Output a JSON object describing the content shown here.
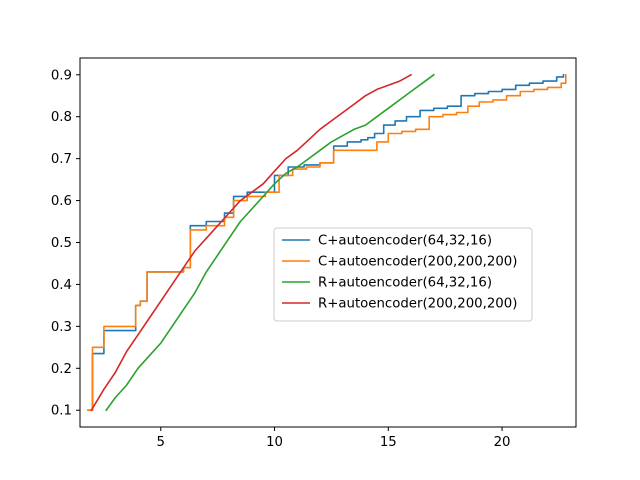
{
  "chart_data": {
    "type": "line",
    "title": "",
    "xlabel": "",
    "ylabel": "",
    "xlim": [
      1.45,
      23.25
    ],
    "ylim": [
      0.06,
      0.94
    ],
    "xticks": [
      5,
      10,
      15,
      20
    ],
    "yticks": [
      0.1,
      0.2,
      0.3,
      0.4,
      0.5,
      0.6,
      0.7,
      0.8,
      0.9
    ],
    "xtick_labels": [
      "5",
      "10",
      "15",
      "20"
    ],
    "ytick_labels": [
      "0.1",
      "0.2",
      "0.3",
      "0.4",
      "0.5",
      "0.6",
      "0.7",
      "0.8",
      "0.9"
    ],
    "grid": false,
    "legend_position": "center-right",
    "series": [
      {
        "name": "C+autoencoder(64,32,16)",
        "color": "#1f77b4",
        "step": true,
        "x": [
          1.8,
          2.0,
          2.5,
          3.9,
          4.1,
          4.4,
          6.0,
          6.3,
          6.6,
          7.0,
          7.4,
          7.8,
          8.2,
          8.8,
          9.6,
          10.0,
          10.6,
          11.3,
          12.0,
          12.6,
          13.2,
          13.8,
          14.1,
          14.4,
          14.8,
          15.3,
          15.8,
          16.4,
          17.0,
          17.6,
          18.2,
          18.8,
          19.4,
          20.0,
          20.6,
          21.2,
          21.8,
          22.4,
          22.7
        ],
        "y": [
          0.1,
          0.235,
          0.29,
          0.35,
          0.36,
          0.43,
          0.44,
          0.54,
          0.54,
          0.55,
          0.55,
          0.57,
          0.61,
          0.62,
          0.62,
          0.66,
          0.68,
          0.685,
          0.69,
          0.73,
          0.74,
          0.745,
          0.75,
          0.76,
          0.78,
          0.79,
          0.8,
          0.815,
          0.82,
          0.825,
          0.85,
          0.855,
          0.86,
          0.865,
          0.875,
          0.88,
          0.885,
          0.895,
          0.9
        ]
      },
      {
        "name": "C+autoencoder(200,200,200)",
        "color": "#ff7f0e",
        "step": true,
        "x": [
          1.8,
          2.0,
          2.5,
          3.9,
          4.1,
          4.4,
          6.0,
          6.3,
          6.6,
          7.0,
          7.4,
          7.8,
          8.2,
          8.8,
          9.6,
          10.2,
          10.8,
          11.4,
          12.0,
          12.6,
          13.4,
          14.0,
          14.5,
          15.0,
          15.6,
          16.2,
          16.8,
          17.4,
          18.0,
          18.5,
          19.0,
          19.6,
          20.2,
          20.8,
          21.4,
          22.0,
          22.6,
          22.8
        ],
        "y": [
          0.1,
          0.25,
          0.3,
          0.35,
          0.36,
          0.43,
          0.44,
          0.53,
          0.53,
          0.54,
          0.54,
          0.56,
          0.6,
          0.61,
          0.62,
          0.66,
          0.675,
          0.68,
          0.69,
          0.72,
          0.72,
          0.72,
          0.74,
          0.76,
          0.765,
          0.77,
          0.8,
          0.805,
          0.81,
          0.825,
          0.835,
          0.84,
          0.85,
          0.86,
          0.865,
          0.87,
          0.88,
          0.9
        ]
      },
      {
        "name": "R+autoencoder(64,32,16)",
        "color": "#2ca02c",
        "step": false,
        "x": [
          2.6,
          3.0,
          3.5,
          4.0,
          4.5,
          5.0,
          5.5,
          6.0,
          6.5,
          7.0,
          7.5,
          8.0,
          8.5,
          9.0,
          9.5,
          10.0,
          10.5,
          11.0,
          11.5,
          12.0,
          12.5,
          13.0,
          13.5,
          14.0,
          14.5,
          15.0,
          15.5,
          16.0,
          16.5,
          17.0
        ],
        "y": [
          0.1,
          0.13,
          0.16,
          0.2,
          0.23,
          0.26,
          0.3,
          0.34,
          0.38,
          0.43,
          0.47,
          0.51,
          0.55,
          0.58,
          0.61,
          0.64,
          0.665,
          0.68,
          0.7,
          0.72,
          0.74,
          0.755,
          0.77,
          0.78,
          0.8,
          0.82,
          0.84,
          0.86,
          0.88,
          0.9
        ]
      },
      {
        "name": "R+autoencoder(200,200,200)",
        "color": "#d62728",
        "step": false,
        "x": [
          1.95,
          2.5,
          3.0,
          3.5,
          4.0,
          4.5,
          5.0,
          5.5,
          6.0,
          6.5,
          7.0,
          7.5,
          8.0,
          8.5,
          9.0,
          9.5,
          10.0,
          10.5,
          11.0,
          11.5,
          12.0,
          12.5,
          13.0,
          13.5,
          14.0,
          14.5,
          15.0,
          15.5,
          16.0
        ],
        "y": [
          0.1,
          0.15,
          0.19,
          0.24,
          0.28,
          0.32,
          0.36,
          0.4,
          0.44,
          0.48,
          0.51,
          0.54,
          0.57,
          0.6,
          0.62,
          0.64,
          0.67,
          0.7,
          0.72,
          0.745,
          0.77,
          0.79,
          0.81,
          0.83,
          0.85,
          0.865,
          0.875,
          0.885,
          0.9
        ]
      }
    ]
  }
}
